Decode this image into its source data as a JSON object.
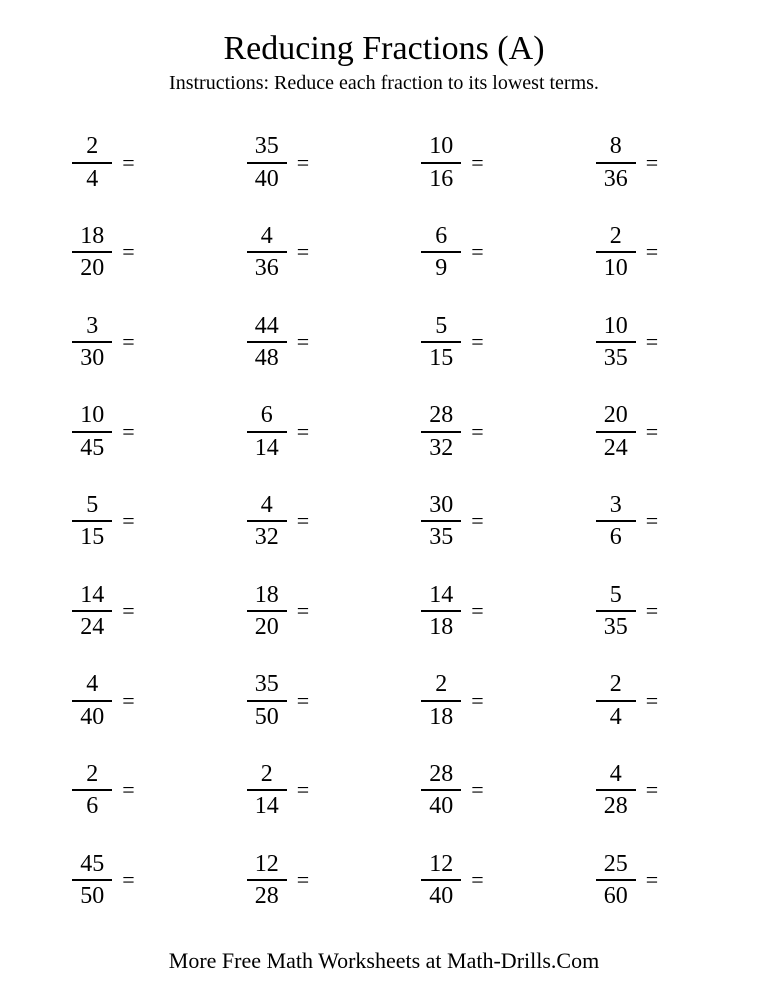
{
  "title": "Reducing Fractions (A)",
  "instructions": "Instructions: Reduce each fraction to its lowest terms.",
  "footer": "More Free Math Worksheets at Math-Drills.Com",
  "equals_symbol": "=",
  "problems": [
    {
      "n": "2",
      "d": "4"
    },
    {
      "n": "35",
      "d": "40"
    },
    {
      "n": "10",
      "d": "16"
    },
    {
      "n": "8",
      "d": "36"
    },
    {
      "n": "18",
      "d": "20"
    },
    {
      "n": "4",
      "d": "36"
    },
    {
      "n": "6",
      "d": "9"
    },
    {
      "n": "2",
      "d": "10"
    },
    {
      "n": "3",
      "d": "30"
    },
    {
      "n": "44",
      "d": "48"
    },
    {
      "n": "5",
      "d": "15"
    },
    {
      "n": "10",
      "d": "35"
    },
    {
      "n": "10",
      "d": "45"
    },
    {
      "n": "6",
      "d": "14"
    },
    {
      "n": "28",
      "d": "32"
    },
    {
      "n": "20",
      "d": "24"
    },
    {
      "n": "5",
      "d": "15"
    },
    {
      "n": "4",
      "d": "32"
    },
    {
      "n": "30",
      "d": "35"
    },
    {
      "n": "3",
      "d": "6"
    },
    {
      "n": "14",
      "d": "24"
    },
    {
      "n": "18",
      "d": "20"
    },
    {
      "n": "14",
      "d": "18"
    },
    {
      "n": "5",
      "d": "35"
    },
    {
      "n": "4",
      "d": "40"
    },
    {
      "n": "35",
      "d": "50"
    },
    {
      "n": "2",
      "d": "18"
    },
    {
      "n": "2",
      "d": "4"
    },
    {
      "n": "2",
      "d": "6"
    },
    {
      "n": "2",
      "d": "14"
    },
    {
      "n": "28",
      "d": "40"
    },
    {
      "n": "4",
      "d": "28"
    },
    {
      "n": "45",
      "d": "50"
    },
    {
      "n": "12",
      "d": "28"
    },
    {
      "n": "12",
      "d": "40"
    },
    {
      "n": "25",
      "d": "60"
    }
  ]
}
